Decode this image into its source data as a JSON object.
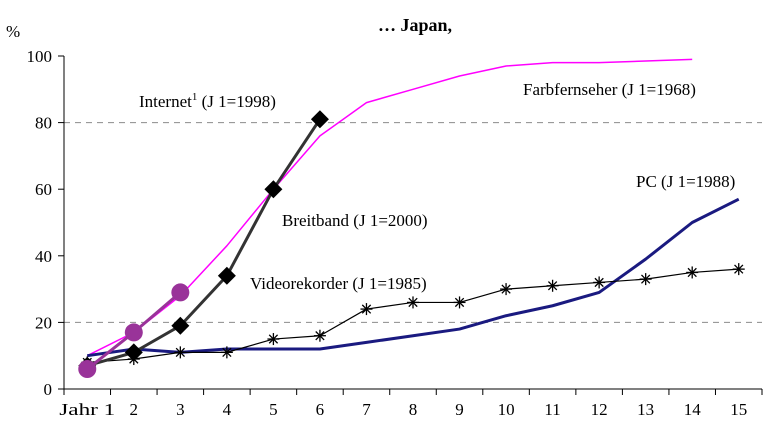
{
  "chart_data": {
    "type": "line",
    "title": "… Japan,",
    "ylabel": "%",
    "xlabel": "",
    "ylim": [
      0,
      100
    ],
    "yticks": [
      "0",
      "20",
      "40",
      "60",
      "80",
      "100"
    ],
    "xticks": [
      "Jahr 1",
      "2",
      "3",
      "4",
      "5",
      "6",
      "7",
      "8",
      "9",
      "10",
      "11",
      "12",
      "13",
      "14",
      "15"
    ],
    "grid": "dashed horizontal at 20 and 80",
    "series": [
      {
        "name": "Farbfernseher (J 1=1968)",
        "color": "#ff00ff",
        "marker": "none",
        "x": [
          1.5,
          2.5,
          3.5,
          4.5,
          5.5,
          6.5,
          7.5,
          8.5,
          9.5,
          10.5,
          11.5,
          12.5,
          13.5,
          14.5
        ],
        "values": [
          10,
          17,
          28,
          43,
          60,
          76,
          86,
          90,
          94,
          97,
          98,
          98,
          98.5,
          99
        ]
      },
      {
        "name": "Internet (J 1=1998)",
        "color": "#333333",
        "marker": "diamond",
        "x": [
          1.5,
          2.5,
          3.5,
          4.5,
          5.5,
          6.5
        ],
        "values": [
          7,
          11,
          19,
          34,
          60,
          81
        ]
      },
      {
        "name": "Breitband (J 1=2000)",
        "color": "#993399",
        "marker": "circle",
        "x": [
          1.5,
          2.5,
          3.5
        ],
        "values": [
          6,
          17,
          29
        ]
      },
      {
        "name": "Videorekorder (J 1=1985)",
        "color": "#000000",
        "marker": "asterisk",
        "x": [
          1.5,
          2.5,
          3.5,
          4.5,
          5.5,
          6.5,
          7.5,
          8.5,
          9.5,
          10.5,
          11.5,
          12.5,
          13.5,
          14.5,
          15.5
        ],
        "values": [
          8,
          9,
          11,
          11,
          15,
          16,
          24,
          26,
          26,
          30,
          31,
          32,
          33,
          35,
          36
        ]
      },
      {
        "name": "PC (J 1=1988)",
        "color": "#1a1a80",
        "marker": "none",
        "x": [
          1.5,
          2.5,
          3.5,
          4.5,
          5.5,
          6.5,
          7.5,
          8.5,
          9.5,
          10.5,
          11.5,
          12.5,
          13.5,
          14.5,
          15.5
        ],
        "values": [
          10,
          12,
          11,
          12,
          12,
          12,
          14,
          16,
          18,
          22,
          25,
          29,
          39,
          50,
          57
        ]
      }
    ],
    "annotations": {
      "internet_name": "Internet",
      "internet_sup": "1",
      "internet_year": " (J 1=1998)",
      "farbfernseher": "Farbfernseher (J 1=1968)",
      "pc": "PC (J 1=1988)",
      "breitband": "Breitband (J 1=2000)",
      "videorekorder": "Videorekorder (J 1=1985)"
    }
  }
}
